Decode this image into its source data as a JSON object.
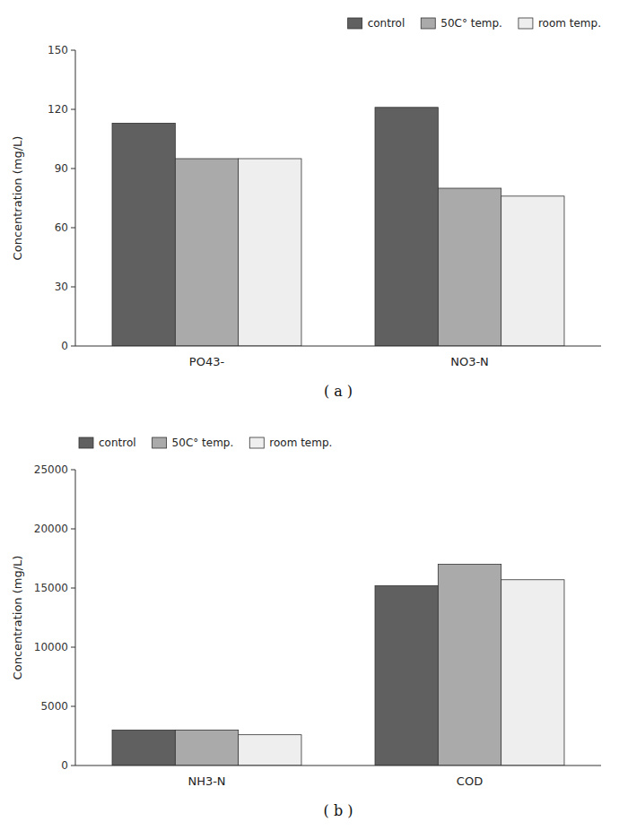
{
  "chart_data": [
    {
      "type": "bar",
      "title": "( a )",
      "ylabel": "Concentration (mg/L)",
      "categories": [
        "PO43-",
        "NO3-N"
      ],
      "series": [
        {
          "name": "control",
          "color": "#606060",
          "values": [
            113,
            121
          ]
        },
        {
          "name": "50C° temp.",
          "color": "#aaaaaa",
          "values": [
            95,
            80
          ]
        },
        {
          "name": "room temp.",
          "color": "#eeeeee",
          "values": [
            95,
            76
          ]
        }
      ],
      "ylim": [
        0,
        150
      ],
      "yticks": [
        0,
        30,
        60,
        90,
        120,
        150
      ],
      "grid": false,
      "legend": "upper right"
    },
    {
      "type": "bar",
      "title": "( b )",
      "ylabel": "Concentration (mg/L)",
      "categories": [
        "NH3-N",
        "COD"
      ],
      "series": [
        {
          "name": "control",
          "color": "#606060",
          "values": [
            3000,
            15200
          ]
        },
        {
          "name": "50C° temp.",
          "color": "#aaaaaa",
          "values": [
            3000,
            17000
          ]
        },
        {
          "name": "room temp.",
          "color": "#eeeeee",
          "values": [
            2600,
            15700
          ]
        }
      ],
      "ylim": [
        0,
        25000
      ],
      "yticks": [
        0,
        5000,
        10000,
        15000,
        20000,
        25000
      ],
      "grid": false,
      "legend": "upper left"
    }
  ]
}
